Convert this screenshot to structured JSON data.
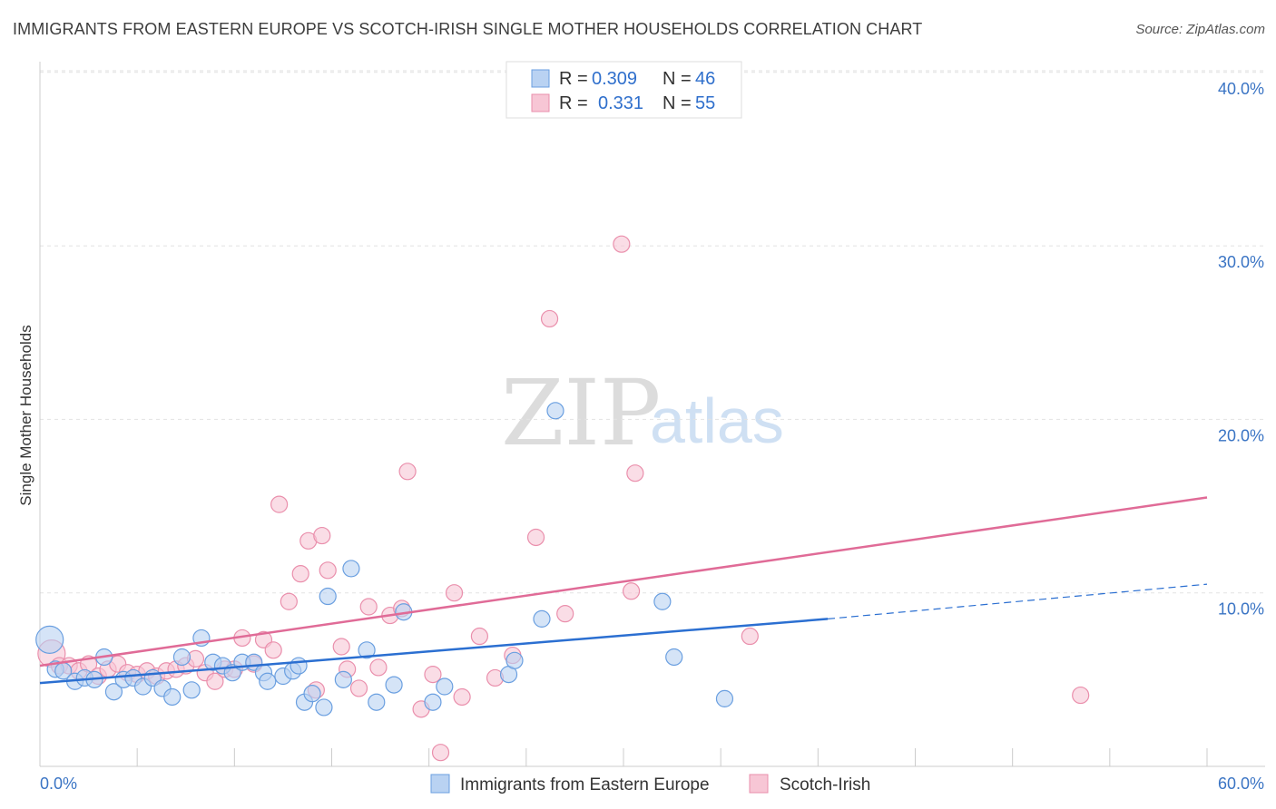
{
  "title": "IMMIGRANTS FROM EASTERN EUROPE VS SCOTCH-IRISH SINGLE MOTHER HOUSEHOLDS CORRELATION CHART",
  "source": "Source: ZipAtlas.com",
  "watermark": {
    "zip": "ZIP",
    "atlas": "atlas"
  },
  "legend": {
    "rows": [
      {
        "r_label": "R =",
        "r_value": "0.309",
        "n_label": "N =",
        "n_value": "46"
      },
      {
        "r_label": "R =",
        "r_value": "0.331",
        "n_label": "N =",
        "n_value": "55"
      }
    ]
  },
  "chart_data": {
    "type": "scatter",
    "title": "IMMIGRANTS FROM EASTERN EUROPE VS SCOTCH-IRISH SINGLE MOTHER HOUSEHOLDS CORRELATION CHART",
    "xlabel": "",
    "ylabel": "Single Mother Households",
    "xlim": [
      0,
      60
    ],
    "ylim": [
      0,
      41
    ],
    "x_tick_labels": [
      "0.0%",
      "60.0%"
    ],
    "y_ticks": [
      10,
      20,
      30,
      40
    ],
    "y_tick_labels": [
      "10.0%",
      "20.0%",
      "30.0%",
      "40.0%"
    ],
    "grid": true,
    "legend_position": "top-center",
    "series": [
      {
        "name": "Immigrants from Eastern Europe",
        "color": "#6a9fe0",
        "fill": "#b9d2f2",
        "line_color": "#2b6fd1",
        "r": 0.309,
        "n": 46,
        "trend": {
          "x0": 0,
          "y0": 4.8,
          "x1": 40.5,
          "y1": 8.5,
          "dash_x1": 60,
          "dash_y1": 10.5
        },
        "points": [
          [
            0.5,
            7.3
          ],
          [
            0.8,
            5.6
          ],
          [
            1.2,
            5.5
          ],
          [
            1.8,
            4.9
          ],
          [
            2.3,
            5.1
          ],
          [
            2.8,
            5.0
          ],
          [
            3.3,
            6.3
          ],
          [
            3.8,
            4.3
          ],
          [
            4.3,
            5.0
          ],
          [
            4.8,
            5.1
          ],
          [
            5.3,
            4.6
          ],
          [
            5.8,
            5.1
          ],
          [
            6.3,
            4.5
          ],
          [
            6.8,
            4.0
          ],
          [
            7.3,
            6.3
          ],
          [
            7.8,
            4.4
          ],
          [
            8.3,
            7.4
          ],
          [
            8.9,
            6.0
          ],
          [
            9.4,
            5.8
          ],
          [
            9.9,
            5.4
          ],
          [
            10.4,
            6.0
          ],
          [
            11.0,
            6.0
          ],
          [
            11.5,
            5.4
          ],
          [
            11.7,
            4.9
          ],
          [
            12.5,
            5.2
          ],
          [
            13.0,
            5.5
          ],
          [
            13.3,
            5.8
          ],
          [
            13.6,
            3.7
          ],
          [
            14.0,
            4.2
          ],
          [
            14.6,
            3.4
          ],
          [
            14.8,
            9.8
          ],
          [
            15.6,
            5.0
          ],
          [
            16.0,
            11.4
          ],
          [
            16.8,
            6.7
          ],
          [
            17.3,
            3.7
          ],
          [
            18.2,
            4.7
          ],
          [
            18.7,
            8.9
          ],
          [
            20.2,
            3.7
          ],
          [
            20.8,
            4.6
          ],
          [
            24.1,
            5.3
          ],
          [
            24.4,
            6.1
          ],
          [
            25.8,
            8.5
          ],
          [
            26.5,
            20.5
          ],
          [
            32.0,
            9.5
          ],
          [
            32.6,
            6.3
          ],
          [
            35.2,
            3.9
          ]
        ]
      },
      {
        "name": "Scotch-Irish",
        "color": "#ea8fac",
        "fill": "#f7c6d5",
        "line_color": "#e06b97",
        "r": 0.331,
        "n": 55,
        "trend": {
          "x0": 0,
          "y0": 5.8,
          "x1": 60,
          "y1": 15.5
        },
        "points": [
          [
            0.6,
            6.5
          ],
          [
            1.0,
            5.8
          ],
          [
            1.5,
            5.8
          ],
          [
            2.0,
            5.5
          ],
          [
            2.5,
            5.9
          ],
          [
            3.0,
            5.2
          ],
          [
            3.5,
            5.6
          ],
          [
            4.0,
            5.9
          ],
          [
            4.5,
            5.4
          ],
          [
            5.0,
            5.3
          ],
          [
            5.5,
            5.5
          ],
          [
            6.0,
            5.2
          ],
          [
            6.5,
            5.5
          ],
          [
            7.0,
            5.6
          ],
          [
            7.5,
            5.8
          ],
          [
            8.0,
            6.2
          ],
          [
            8.5,
            5.4
          ],
          [
            9.0,
            4.9
          ],
          [
            9.5,
            5.6
          ],
          [
            10.0,
            5.6
          ],
          [
            10.4,
            7.4
          ],
          [
            11.0,
            5.9
          ],
          [
            11.5,
            7.3
          ],
          [
            12.0,
            6.7
          ],
          [
            12.3,
            15.1
          ],
          [
            12.8,
            9.5
          ],
          [
            13.4,
            11.1
          ],
          [
            13.8,
            13.0
          ],
          [
            14.2,
            4.4
          ],
          [
            14.8,
            11.3
          ],
          [
            14.5,
            13.3
          ],
          [
            15.5,
            6.9
          ],
          [
            15.8,
            5.6
          ],
          [
            16.4,
            4.5
          ],
          [
            16.9,
            9.2
          ],
          [
            17.4,
            5.7
          ],
          [
            18.0,
            8.7
          ],
          [
            18.6,
            9.1
          ],
          [
            18.9,
            17.0
          ],
          [
            19.6,
            3.3
          ],
          [
            20.2,
            5.3
          ],
          [
            20.6,
            0.8
          ],
          [
            21.3,
            10.0
          ],
          [
            21.7,
            4.0
          ],
          [
            22.6,
            7.5
          ],
          [
            23.4,
            5.1
          ],
          [
            24.3,
            6.4
          ],
          [
            25.5,
            13.2
          ],
          [
            26.2,
            25.8
          ],
          [
            27.0,
            8.8
          ],
          [
            29.9,
            30.1
          ],
          [
            30.4,
            10.1
          ],
          [
            30.6,
            16.9
          ],
          [
            36.5,
            7.5
          ],
          [
            53.5,
            4.1
          ]
        ]
      }
    ]
  },
  "bottom_legend": [
    "Immigrants from Eastern Europe",
    "Scotch-Irish"
  ]
}
